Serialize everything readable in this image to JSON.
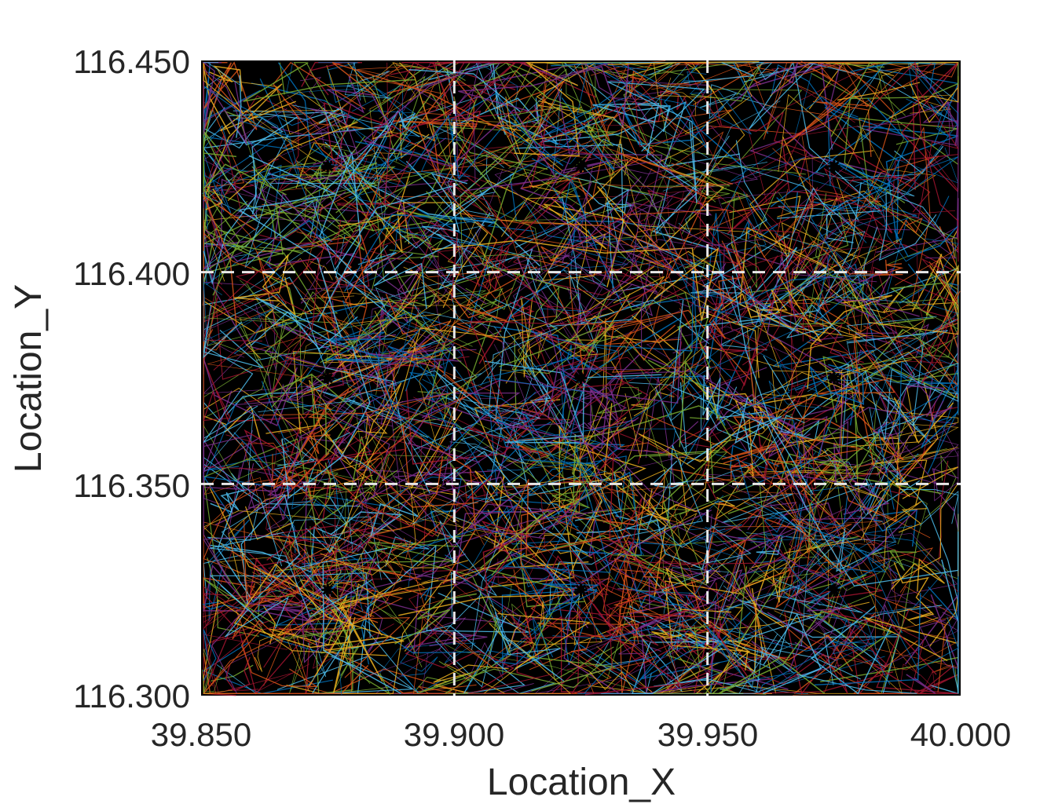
{
  "chart_data": {
    "type": "line",
    "title": "",
    "xlabel": "Location_X",
    "ylabel": "Location_Y",
    "xlim": [
      39.85,
      40.0
    ],
    "ylim": [
      116.3,
      116.45
    ],
    "xticks": [
      "39.850",
      "39.900",
      "39.950",
      "40.000"
    ],
    "yticks": [
      "116.300",
      "116.350",
      "116.400",
      "116.450"
    ],
    "x_tick_values": [
      39.85,
      39.9,
      39.95,
      40.0
    ],
    "y_tick_values": [
      116.3,
      116.35,
      116.4,
      116.45
    ],
    "background": "#000000",
    "grid_lines": {
      "x": [
        39.9,
        39.95
      ],
      "y": [
        116.35,
        116.4
      ],
      "style": "dashed",
      "color": "#e8e8e8"
    },
    "centers": [
      {
        "x": 39.875,
        "y": 116.425
      },
      {
        "x": 39.925,
        "y": 116.425
      },
      {
        "x": 39.975,
        "y": 116.425
      },
      {
        "x": 39.875,
        "y": 116.375
      },
      {
        "x": 39.925,
        "y": 116.375
      },
      {
        "x": 39.975,
        "y": 116.375
      },
      {
        "x": 39.875,
        "y": 116.325
      },
      {
        "x": 39.925,
        "y": 116.325
      },
      {
        "x": 39.975,
        "y": 116.325
      }
    ],
    "series_colors": [
      "#0072BD",
      "#D95319",
      "#EDB120",
      "#7E2F8E",
      "#77AC30",
      "#4DBEEE",
      "#A2142F"
    ],
    "trajectory_segments_estimate": 1400
  }
}
